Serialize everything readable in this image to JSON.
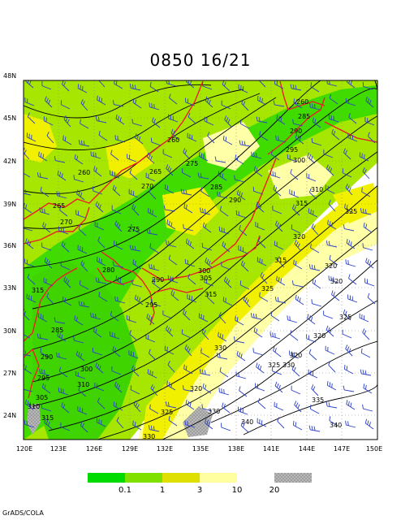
{
  "title": "0850 16/21",
  "credit": "GrADS/COLA",
  "lat_labels": [
    "48N",
    "45N",
    "42N",
    "39N",
    "36N",
    "33N",
    "30N",
    "27N",
    "24N"
  ],
  "lon_labels": [
    "120E",
    "123E",
    "126E",
    "129E",
    "132E",
    "135E",
    "138E",
    "141E",
    "144E",
    "147E",
    "150E"
  ],
  "legend": {
    "labels": [
      "0.1",
      "1",
      "3",
      "10",
      "20"
    ],
    "colors": [
      "#00dc00",
      "#80e000",
      "#e0e000",
      "#ffff00",
      "#ffffa0",
      "#a0a0a0"
    ]
  },
  "contour_labels": [
    "260",
    "265",
    "275",
    "280",
    "285",
    "290",
    "295",
    "300",
    "305",
    "310",
    "315",
    "320",
    "325",
    "330",
    "335",
    "340",
    "270"
  ],
  "colors": {
    "coast": "#e8202a",
    "contour": "#000000",
    "wind": "#2a3fc8",
    "green": "#40dc00",
    "light_green": "#9fe600",
    "yellow": "#f0f000",
    "pale": "#ffffa8"
  }
}
